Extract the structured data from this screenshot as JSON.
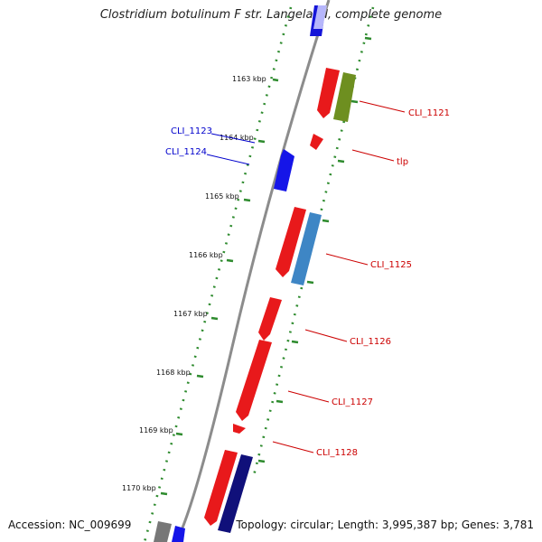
{
  "title": "Clostridium botulinum F str. Langeland, complete genome",
  "footer": {
    "accession": "Accession: NC_009699",
    "summary": "Topology: circular; Length: 3,995,387 bp; Genes: 3,781"
  },
  "colors": {
    "backbone": "#8c8c8c",
    "tick": "#2e8b2e",
    "label_red": "#cc0000",
    "label_blue": "#0000cc"
  },
  "kbp_labels": [
    "1163 kbp",
    "1164 kbp",
    "1165 kbp",
    "1166 kbp",
    "1167 kbp",
    "1168 kbp",
    "1169 kbp",
    "1170 kbp"
  ],
  "gene_labels": {
    "cli_1121": "CLI_1121",
    "tlp": "tlp",
    "cli_1123": "CLI_1123",
    "cli_1124": "CLI_1124",
    "cli_1125": "CLI_1125",
    "cli_1126": "CLI_1126",
    "cli_1127": "CLI_1127",
    "cli_1128": "CLI_1128"
  }
}
